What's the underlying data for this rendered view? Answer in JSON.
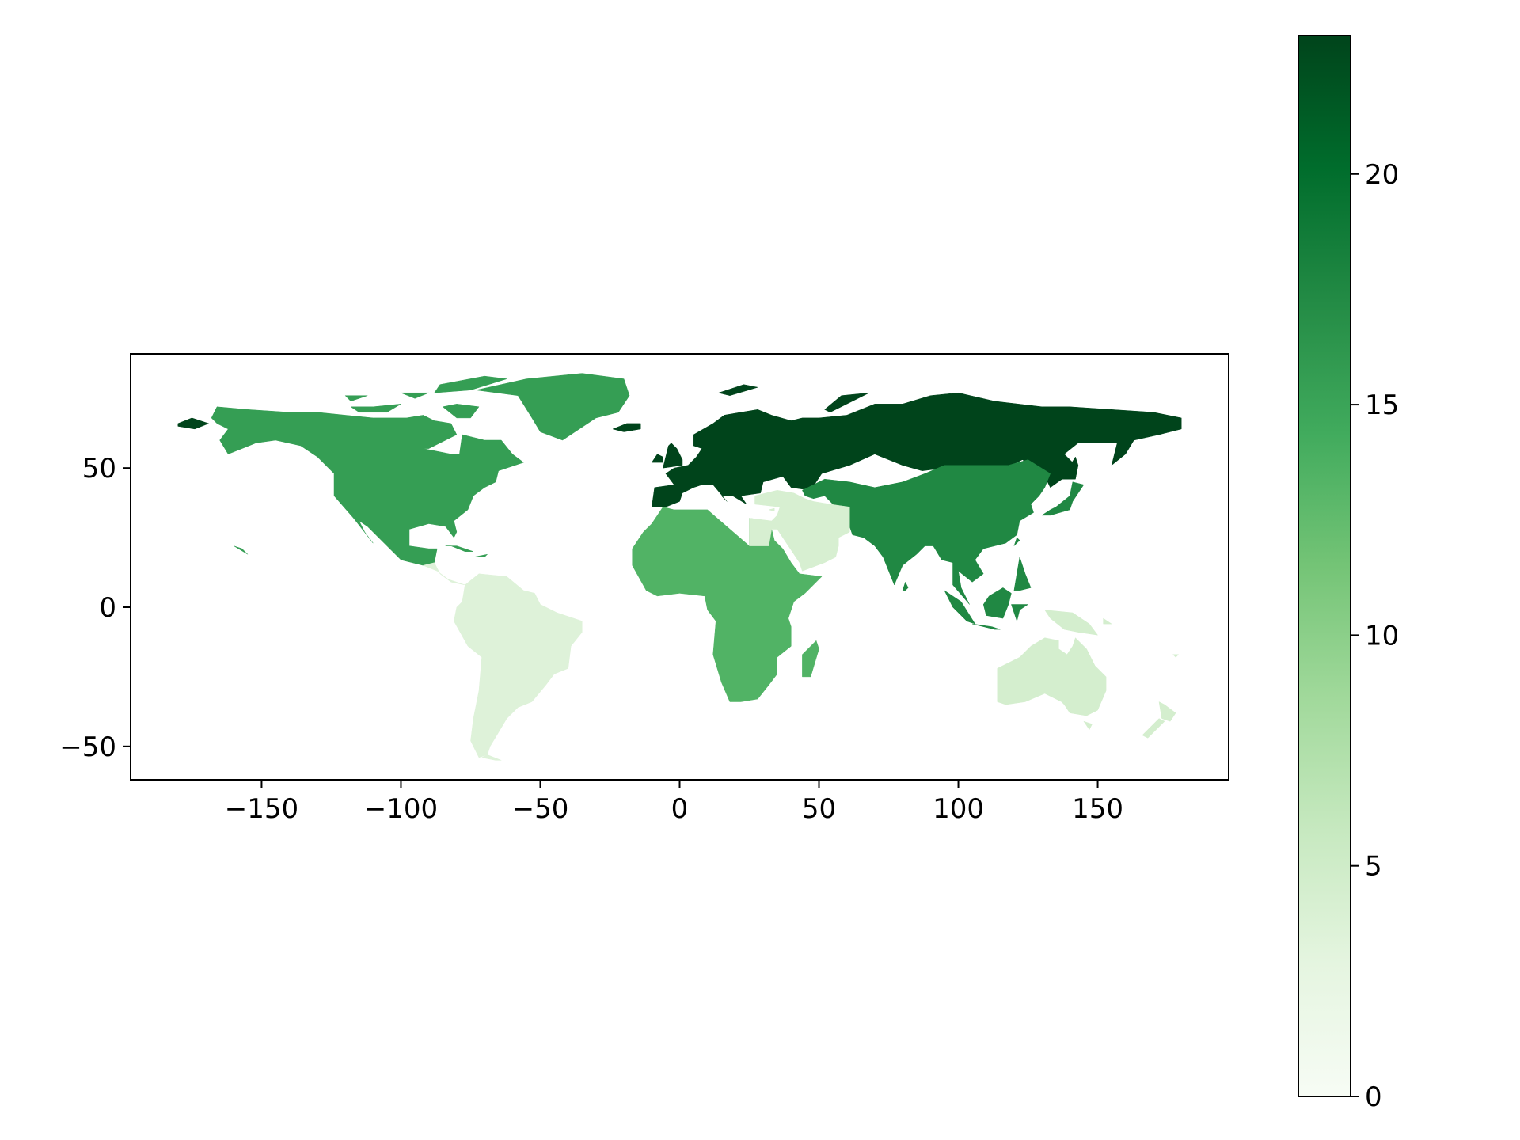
{
  "chart_data": {
    "type": "choropleth",
    "title": "",
    "xlabel": "",
    "ylabel": "",
    "xlim": [
      -197,
      197
    ],
    "ylim": [
      -62,
      91
    ],
    "xticks": [
      -150,
      -100,
      -50,
      0,
      50,
      100,
      150
    ],
    "xtick_labels": [
      "−150",
      "−100",
      "−50",
      "0",
      "50",
      "100",
      "150"
    ],
    "yticks": [
      50,
      0,
      -50
    ],
    "ytick_labels": [
      "50",
      "0",
      "−50"
    ],
    "grid": false,
    "colormap": "Greens",
    "colorbar": {
      "min": 0,
      "max": 23,
      "ticks": [
        0,
        5,
        10,
        15,
        20
      ],
      "tick_labels": [
        "0",
        "5",
        "10",
        "15",
        "20"
      ],
      "low_color": "#f7fcf5",
      "high_color": "#00441b"
    },
    "regions": [
      {
        "name": "Russia / Europe",
        "value": 23
      },
      {
        "name": "Asia",
        "value": 17.5
      },
      {
        "name": "North America",
        "value": 15.5
      },
      {
        "name": "Africa",
        "value": 13.5
      },
      {
        "name": "Australia / Oceania",
        "value": 4.5
      },
      {
        "name": "Middle East",
        "value": 4.2
      },
      {
        "name": "South America",
        "value": 3.5
      }
    ]
  }
}
